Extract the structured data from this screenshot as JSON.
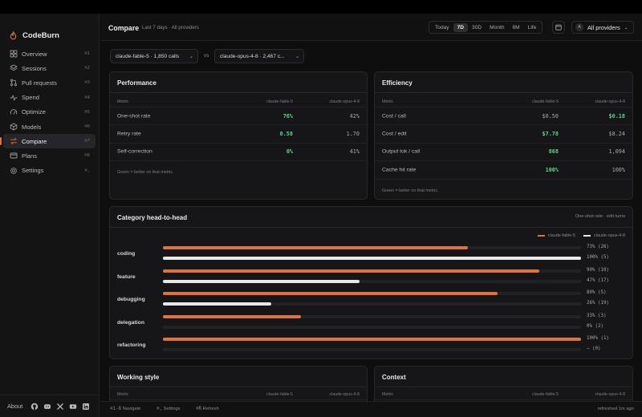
{
  "app": {
    "name": "CodeBurn"
  },
  "sidebar": {
    "items": [
      {
        "label": "Overview",
        "shortcut": "⌘1",
        "icon": "grid-icon"
      },
      {
        "label": "Sessions",
        "shortcut": "⌘2",
        "icon": "layers-icon"
      },
      {
        "label": "Pull requests",
        "shortcut": "⌘3",
        "icon": "git-pull-request-icon"
      },
      {
        "label": "Spend",
        "shortcut": "⌘4",
        "icon": "activity-icon"
      },
      {
        "label": "Optimize",
        "shortcut": "⌘5",
        "icon": "gauge-icon"
      },
      {
        "label": "Models",
        "shortcut": "⌘6",
        "icon": "cube-icon"
      },
      {
        "label": "Compare",
        "shortcut": "⌘7",
        "icon": "swap-icon",
        "active": true
      },
      {
        "label": "Plans",
        "shortcut": "⌘8",
        "icon": "card-icon"
      },
      {
        "label": "Settings",
        "shortcut": "⌘,",
        "icon": "gear-icon"
      }
    ],
    "footer": {
      "about": "About"
    }
  },
  "header": {
    "title": "Compare",
    "subtitle": "Last 7 days · All providers",
    "ranges": [
      "Today",
      "7D",
      "30D",
      "Month",
      "6M",
      "Life"
    ],
    "active_range": "7D",
    "provider": {
      "badge": "A",
      "label": "All providers"
    }
  },
  "selectors": {
    "left": "claude-fable-5 · 1,850 calls",
    "vs": "vs",
    "right": "claude-opus-4-8 · 2,467 c..."
  },
  "performance": {
    "title": "Performance",
    "headers": [
      "Metric",
      "claude-fable-5",
      "claude-opus-4-8"
    ],
    "rows": [
      {
        "metric": "One-shot rate",
        "a": "76%",
        "b": "42%",
        "winner": "a"
      },
      {
        "metric": "Retry rate",
        "a": "0.58",
        "b": "1.70",
        "winner": "a"
      },
      {
        "metric": "Self-correction",
        "a": "0%",
        "b": "41%",
        "winner": "a"
      }
    ],
    "note": "Green = better on that metric."
  },
  "efficiency": {
    "title": "Efficiency",
    "headers": [
      "Metric",
      "claude-fable-5",
      "claude-opus-4-8"
    ],
    "rows": [
      {
        "metric": "Cost / call",
        "a": "$0.50",
        "b": "$0.18",
        "winner": "b"
      },
      {
        "metric": "Cost / edit",
        "a": "$7.78",
        "b": "$8.24",
        "winner": "a"
      },
      {
        "metric": "Output tok / call",
        "a": "868",
        "b": "1,094",
        "winner": "a"
      },
      {
        "metric": "Cache hit rate",
        "a": "100%",
        "b": "100%",
        "winner": "a"
      }
    ],
    "note": "Green = better on that metric."
  },
  "category": {
    "title": "Category head-to-head",
    "right_label": "One-shot rate · edit turns",
    "legend": [
      "claude-fable-5",
      "claude-opus-4-8"
    ],
    "colors": {
      "a": "#e0733a",
      "b": "#e8e8ea"
    },
    "rows": [
      {
        "name": "coding",
        "a": 0.73,
        "a_label": "73% (26)",
        "b": 1.0,
        "b_label": "100% (5)"
      },
      {
        "name": "feature",
        "a": 0.9,
        "a_label": "90% (10)",
        "b": 0.47,
        "b_label": "47% (17)"
      },
      {
        "name": "debugging",
        "a": 0.8,
        "a_label": "80% (5)",
        "b": 0.26,
        "b_label": "26% (19)"
      },
      {
        "name": "delegation",
        "a": 0.33,
        "a_label": "33% (3)",
        "b": 0.0,
        "b_label": "0% (2)"
      },
      {
        "name": "refactoring",
        "a": 1.0,
        "a_label": "100% (1)",
        "b": 0.0,
        "b_label": "— (0)"
      }
    ]
  },
  "working_style": {
    "title": "Working style",
    "headers": [
      "Metric",
      "claude-fable-5",
      "claude-opus-4-8"
    ]
  },
  "context": {
    "title": "Context",
    "headers": [
      "Metric",
      "claude-fable-5",
      "claude-opus-4-8"
    ]
  },
  "footer": {
    "hints": [
      {
        "key": "⌘1-8",
        "label": "Navigate"
      },
      {
        "key": "⌘,",
        "label": "Settings"
      },
      {
        "key": "⌘R",
        "label": "Refresh"
      }
    ],
    "refreshed": "refreshed 1m ago"
  }
}
